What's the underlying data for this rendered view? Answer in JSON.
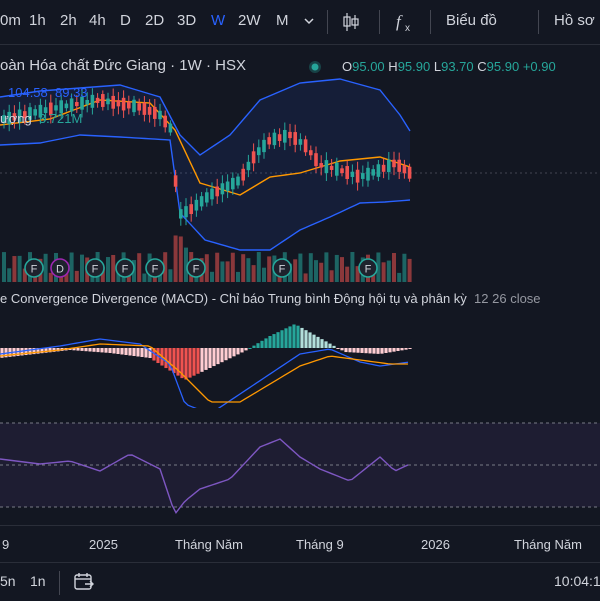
{
  "toolbar": {
    "timeframes": [
      "0m",
      "1h",
      "2h",
      "4h",
      "D",
      "2D",
      "3D",
      "W",
      "2W",
      "M"
    ],
    "active_timeframe": "W",
    "dropdown_icon": "chevron-down-icon",
    "chart_type_icon": "candles-icon",
    "indicator_icon": "fx-icon",
    "chart_label": "Biểu đồ",
    "profile_label": "Hồ sơ"
  },
  "legend": {
    "symbol_title": "oàn Hóa chất Đức Giang · 1W · HSX",
    "status_icon": "market-open-dot-icon",
    "ohlc": [
      {
        "k": "O",
        "v": "95.00"
      },
      {
        "k": "H",
        "v": "95.90"
      },
      {
        "k": "L",
        "v": "93.70"
      },
      {
        "k": "C",
        "v": "95.90"
      },
      {
        "k": "",
        "v": "+0.90"
      }
    ],
    "bb_values": [
      "104.58",
      "89.33"
    ],
    "volume_label": "ượng",
    "volume_value": "3.721M"
  },
  "macd": {
    "title": "e Convergence Divergence (MACD) - Chỉ báo Trung bình Động hội tụ và phân kỳ",
    "params": "12 26 close"
  },
  "markers": [
    {
      "kind": "F",
      "color": "#26a69a"
    },
    {
      "kind": "D",
      "color": "#9c27b0"
    },
    {
      "kind": "F",
      "color": "#26a69a"
    },
    {
      "kind": "F",
      "color": "#26a69a"
    },
    {
      "kind": "F",
      "color": "#26a69a"
    },
    {
      "kind": "F",
      "color": "#26a69a"
    },
    {
      "kind": "F",
      "color": "#26a69a"
    },
    {
      "kind": "F",
      "color": "#26a69a"
    }
  ],
  "time_axis": [
    "9",
    "2025",
    "Tháng Năm",
    "Tháng 9",
    "2026",
    "Tháng Năm"
  ],
  "bottom": {
    "ranges": [
      "5n",
      "1n"
    ],
    "calendar_icon": "calendar-range-icon",
    "clock": "10:04:1"
  },
  "colors": {
    "up": "#26a69a",
    "down": "#ef5350",
    "bb": "#2962ff",
    "ma": "#ff9800",
    "rsi": "#7e57c2",
    "accent": "#2962ff"
  }
}
